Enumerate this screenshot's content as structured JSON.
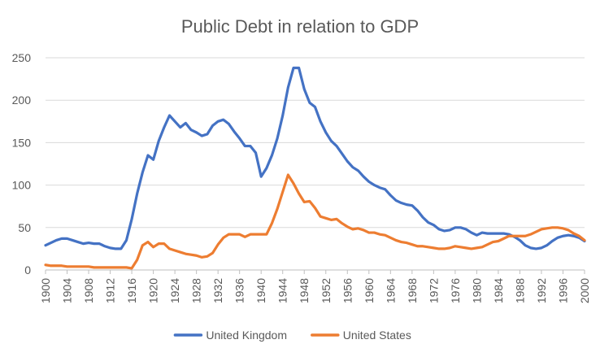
{
  "chart_data": {
    "type": "line",
    "title": "Public Debt in relation to GDP",
    "xlabel": "",
    "ylabel": "",
    "ylim": [
      0,
      250
    ],
    "yticks": [
      0,
      50,
      100,
      150,
      200,
      250
    ],
    "xlim": [
      1900,
      2000
    ],
    "xticks": [
      1900,
      1904,
      1908,
      1912,
      1916,
      1920,
      1924,
      1928,
      1932,
      1936,
      1940,
      1944,
      1948,
      1952,
      1956,
      1960,
      1964,
      1968,
      1972,
      1976,
      1980,
      1984,
      1988,
      1992,
      1996,
      2000
    ],
    "grid": true,
    "legend": "bottom",
    "x": [
      1900,
      1901,
      1902,
      1903,
      1904,
      1905,
      1906,
      1907,
      1908,
      1909,
      1910,
      1911,
      1912,
      1913,
      1914,
      1915,
      1916,
      1917,
      1918,
      1919,
      1920,
      1921,
      1922,
      1923,
      1924,
      1925,
      1926,
      1927,
      1928,
      1929,
      1930,
      1931,
      1932,
      1933,
      1934,
      1935,
      1936,
      1937,
      1938,
      1939,
      1940,
      1941,
      1942,
      1943,
      1944,
      1945,
      1946,
      1947,
      1948,
      1949,
      1950,
      1951,
      1952,
      1953,
      1954,
      1955,
      1956,
      1957,
      1958,
      1959,
      1960,
      1961,
      1962,
      1963,
      1964,
      1965,
      1966,
      1967,
      1968,
      1969,
      1970,
      1971,
      1972,
      1973,
      1974,
      1975,
      1976,
      1977,
      1978,
      1979,
      1980,
      1981,
      1982,
      1983,
      1984,
      1985,
      1986,
      1987,
      1988,
      1989,
      1990,
      1991,
      1992,
      1993,
      1994,
      1995,
      1996,
      1997,
      1998,
      1999,
      2000
    ],
    "series": [
      {
        "name": "United Kingdom",
        "color": "#4472C4",
        "values": [
          29,
          32,
          35,
          37,
          37,
          35,
          33,
          31,
          32,
          31,
          31,
          28,
          26,
          25,
          25,
          35,
          60,
          90,
          115,
          135,
          130,
          152,
          168,
          182,
          175,
          168,
          173,
          165,
          162,
          158,
          160,
          170,
          175,
          177,
          172,
          163,
          155,
          146,
          146,
          138,
          110,
          120,
          135,
          155,
          182,
          215,
          238,
          238,
          213,
          197,
          192,
          175,
          162,
          152,
          146,
          137,
          128,
          121,
          117,
          110,
          104,
          100,
          97,
          95,
          88,
          82,
          79,
          77,
          76,
          70,
          62,
          56,
          53,
          48,
          46,
          47,
          50,
          50,
          48,
          44,
          41,
          44,
          43,
          43,
          43,
          43,
          42,
          39,
          35,
          29,
          26,
          25,
          26,
          29,
          34,
          38,
          40,
          41,
          40,
          38,
          34
        ],
        "color_note": ""
      },
      {
        "name": "United States",
        "color": "#ED7D31",
        "values": [
          6,
          5,
          5,
          5,
          4,
          4,
          4,
          4,
          4,
          3,
          3,
          3,
          3,
          3,
          3,
          3,
          2,
          12,
          29,
          33,
          27,
          31,
          31,
          25,
          23,
          21,
          19,
          18,
          17,
          15,
          16,
          20,
          30,
          38,
          42,
          42,
          42,
          39,
          42,
          42,
          42,
          42,
          55,
          72,
          92,
          112,
          102,
          90,
          80,
          81,
          73,
          63,
          61,
          59,
          60,
          55,
          51,
          48,
          49,
          47,
          44,
          44,
          42,
          41,
          38,
          35,
          33,
          32,
          30,
          28,
          28,
          27,
          26,
          25,
          25,
          26,
          28,
          27,
          26,
          25,
          26,
          27,
          30,
          33,
          34,
          37,
          40,
          40,
          40,
          40,
          42,
          45,
          48,
          49,
          50,
          50,
          49,
          47,
          43,
          40,
          35
        ]
      }
    ]
  }
}
